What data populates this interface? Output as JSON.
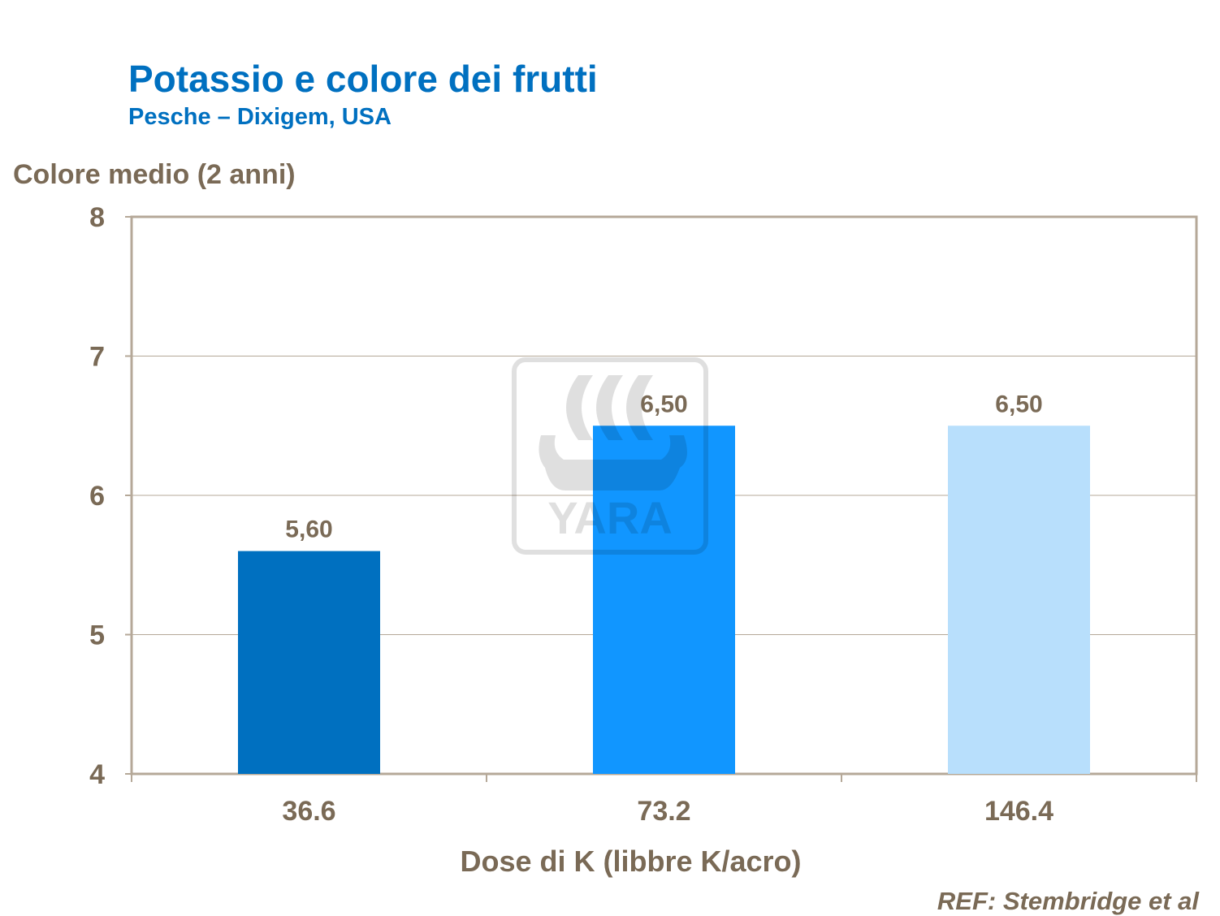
{
  "chart_data": {
    "type": "bar",
    "title": "Potassio e colore dei frutti",
    "subtitle": "Pesche – Dixigem, USA",
    "ylabel": "Colore medio (2 anni)",
    "xlabel": "Dose di K (libbre K/acro)",
    "categories": [
      "36.6",
      "73.2",
      "146.4"
    ],
    "values": [
      5.6,
      6.5,
      6.5
    ],
    "data_labels": [
      "5,60",
      "6,50",
      "6,50"
    ],
    "colors": [
      "#0070c0",
      "#1196ff",
      "#b8dffc"
    ],
    "ylim": [
      4,
      8
    ],
    "yticks": [
      "4",
      "5",
      "6",
      "7",
      "8"
    ],
    "grid": true,
    "reference": "REF:  Stembridge  et al",
    "watermark": "YARA"
  }
}
